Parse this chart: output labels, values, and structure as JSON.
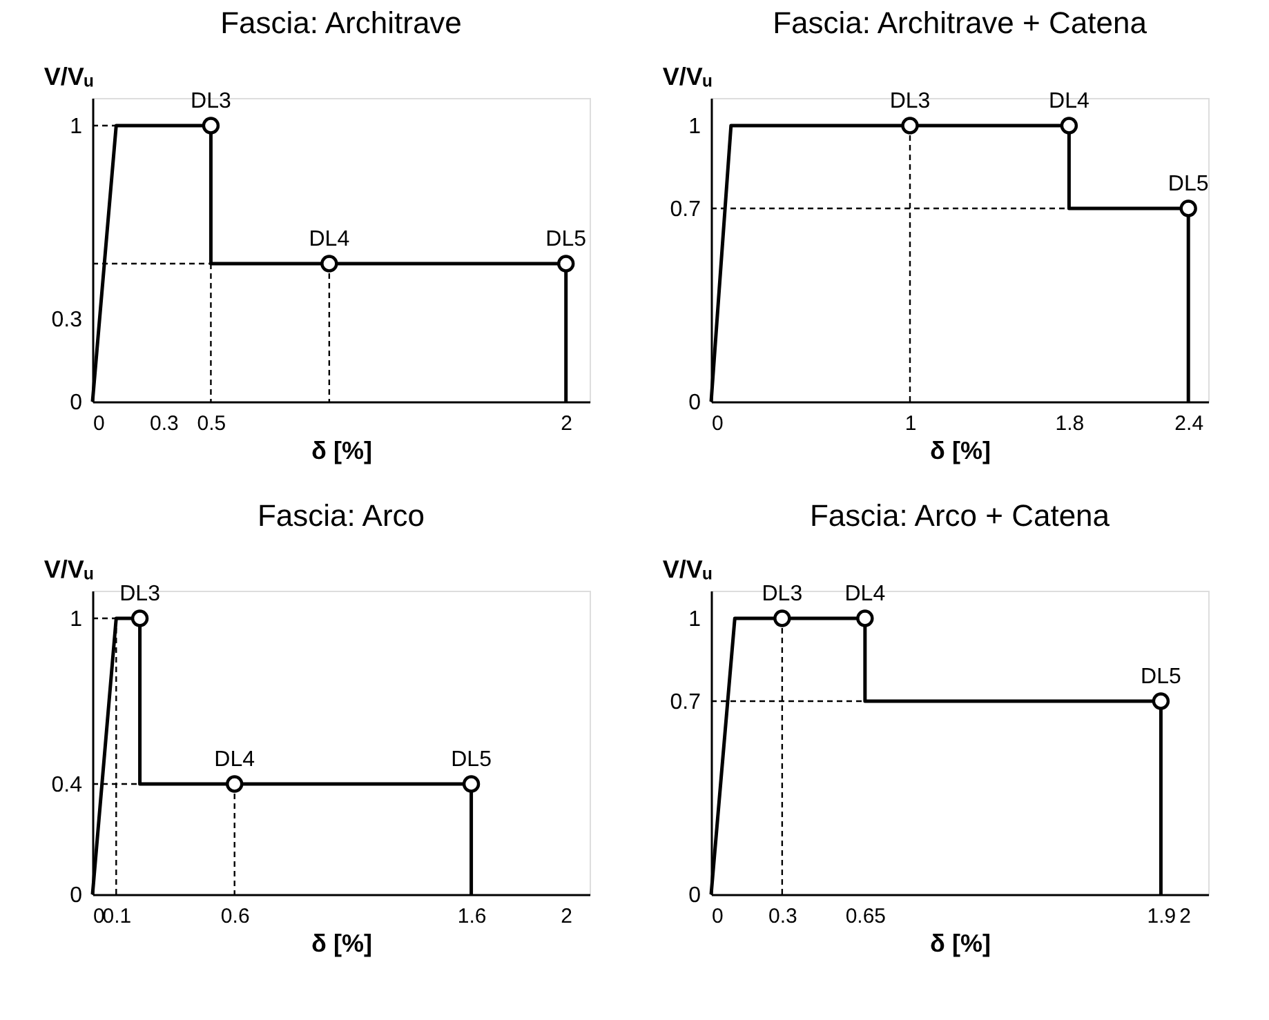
{
  "chart_data": [
    {
      "type": "line",
      "title": "Fascia: Architrave",
      "xlabel": "δ [%]",
      "ylabel": "V/Vᵤ",
      "xlim": [
        0,
        2.1
      ],
      "ylim": [
        0,
        1.1
      ],
      "xticks": [
        0,
        0.3,
        0.5,
        2
      ],
      "yticks": [
        0,
        0.3,
        1
      ],
      "series": [
        {
          "color": "#000000",
          "line_style": "solid",
          "x": [
            0,
            0.1,
            0.5,
            0.5,
            2,
            2
          ],
          "values": [
            0,
            1,
            1,
            0.5,
            0.5,
            0
          ]
        },
        {
          "type": "line",
          "color": "#000000",
          "line_style": "dashed",
          "x": [
            0,
            0.1
          ],
          "values": [
            1,
            1
          ]
        },
        {
          "type": "line",
          "color": "#000000",
          "line_style": "dashed",
          "x": [
            0,
            0.5
          ],
          "values": [
            0.5,
            0.5
          ]
        },
        {
          "type": "line",
          "color": "#000000",
          "line_style": "dashed",
          "x": [
            0.5,
            0.5
          ],
          "values": [
            0.5,
            0
          ]
        },
        {
          "type": "line",
          "color": "#000000",
          "line_style": "dashed",
          "x": [
            1,
            1
          ],
          "values": [
            0.5,
            0
          ]
        },
        {
          "type": "scatter",
          "color": "#000000",
          "marker": "circle",
          "x": [
            0.5,
            1,
            2
          ],
          "values": [
            1,
            0.5,
            0.5
          ]
        }
      ],
      "annotations": [
        {
          "text": "DL3",
          "x": 0.5,
          "y": 1
        },
        {
          "text": "DL4",
          "x": 1,
          "y": 0.5
        },
        {
          "text": "DL5",
          "x": 2,
          "y": 0.5
        }
      ]
    },
    {
      "type": "line",
      "title": "Fascia: Architrave + Catena",
      "xlabel": "δ [%]",
      "ylabel": "V/Vᵤ",
      "xlim": [
        0,
        2.5
      ],
      "ylim": [
        0,
        1.1
      ],
      "xticks": [
        0,
        1,
        1.8,
        2.4
      ],
      "yticks": [
        0,
        0.7,
        1
      ],
      "series": [
        {
          "color": "#000000",
          "line_style": "solid",
          "x": [
            0,
            0.1,
            1.8,
            1.8,
            2.4,
            2.4
          ],
          "values": [
            0,
            1,
            1,
            0.7,
            0.7,
            0
          ]
        },
        {
          "type": "line",
          "color": "#000000",
          "line_style": "dashed",
          "x": [
            0,
            1.8
          ],
          "values": [
            0.7,
            0.7
          ]
        },
        {
          "type": "line",
          "color": "#000000",
          "line_style": "dashed",
          "x": [
            1,
            1
          ],
          "values": [
            1,
            0
          ]
        },
        {
          "type": "scatter",
          "color": "#000000",
          "marker": "circle",
          "x": [
            1,
            1.8,
            2.4
          ],
          "values": [
            1,
            1,
            0.7
          ]
        }
      ],
      "annotations": [
        {
          "text": "DL3",
          "x": 1,
          "y": 1
        },
        {
          "text": "DL4",
          "x": 1.8,
          "y": 1
        },
        {
          "text": "DL5",
          "x": 2.4,
          "y": 0.7
        }
      ]
    },
    {
      "type": "line",
      "title": "Fascia: Arco",
      "xlabel": "δ [%]",
      "ylabel": "V/Vᵤ",
      "xlim": [
        0,
        2.1
      ],
      "ylim": [
        0,
        1.1
      ],
      "xticks": [
        0,
        0.1,
        0.6,
        1.6,
        2
      ],
      "yticks": [
        0,
        0.4,
        1
      ],
      "series": [
        {
          "color": "#000000",
          "line_style": "solid",
          "x": [
            0,
            0.1,
            0.2,
            0.2,
            1.6,
            1.6
          ],
          "values": [
            0,
            1,
            1,
            0.4,
            0.4,
            0
          ]
        },
        {
          "type": "line",
          "color": "#000000",
          "line_style": "dashed",
          "x": [
            0,
            0.1
          ],
          "values": [
            1,
            1
          ]
        },
        {
          "type": "line",
          "color": "#000000",
          "line_style": "dashed",
          "x": [
            0.1,
            0.1
          ],
          "values": [
            1,
            0
          ]
        },
        {
          "type": "line",
          "color": "#000000",
          "line_style": "dashed",
          "x": [
            0,
            0.2
          ],
          "values": [
            0.4,
            0.4
          ]
        },
        {
          "type": "line",
          "color": "#000000",
          "line_style": "dashed",
          "x": [
            0.6,
            0.6
          ],
          "values": [
            0.4,
            0
          ]
        },
        {
          "type": "scatter",
          "color": "#000000",
          "marker": "circle",
          "x": [
            0.2,
            0.6,
            1.6
          ],
          "values": [
            1,
            0.4,
            0.4
          ]
        }
      ],
      "annotations": [
        {
          "text": "DL3",
          "x": 0.2,
          "y": 1
        },
        {
          "text": "DL4",
          "x": 0.6,
          "y": 0.4
        },
        {
          "text": "DL5",
          "x": 1.6,
          "y": 0.4
        }
      ]
    },
    {
      "type": "line",
      "title": "Fascia: Arco + Catena",
      "xlabel": "δ [%]",
      "ylabel": "V/Vᵤ",
      "xlim": [
        0,
        2.1
      ],
      "ylim": [
        0,
        1.1
      ],
      "xticks": [
        0,
        0.3,
        0.65,
        1.9,
        2
      ],
      "yticks": [
        0,
        0.7,
        1
      ],
      "series": [
        {
          "color": "#000000",
          "line_style": "solid",
          "x": [
            0,
            0.1,
            0.65,
            0.65,
            1.9,
            1.9
          ],
          "values": [
            0,
            1,
            1,
            0.7,
            0.7,
            0
          ]
        },
        {
          "type": "line",
          "color": "#000000",
          "line_style": "dashed",
          "x": [
            0,
            0.65
          ],
          "values": [
            0.7,
            0.7
          ]
        },
        {
          "type": "line",
          "color": "#000000",
          "line_style": "dashed",
          "x": [
            0.3,
            0.3
          ],
          "values": [
            1,
            0
          ]
        },
        {
          "type": "scatter",
          "color": "#000000",
          "marker": "circle",
          "x": [
            0.3,
            0.65,
            1.9
          ],
          "values": [
            1,
            1,
            0.7
          ]
        }
      ],
      "annotations": [
        {
          "text": "DL3",
          "x": 0.3,
          "y": 1
        },
        {
          "text": "DL4",
          "x": 0.65,
          "y": 1
        },
        {
          "text": "DL5",
          "x": 1.9,
          "y": 0.7
        }
      ]
    }
  ]
}
